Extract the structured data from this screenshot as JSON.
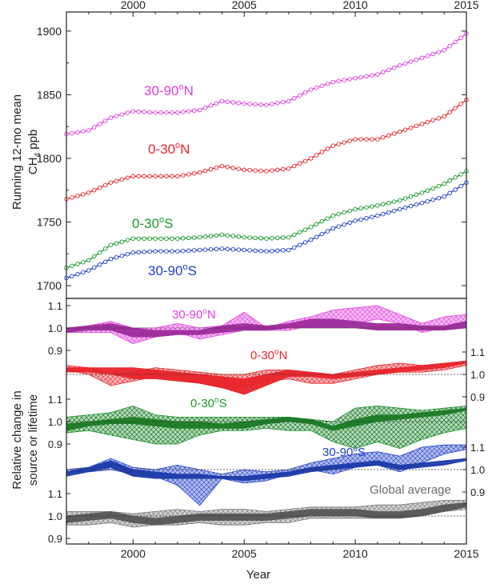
{
  "chart_data": [
    {
      "type": "line",
      "panel": "top",
      "ylabel_line1": "Running 12-mo mean",
      "ylabel_line2_main": "CH",
      "ylabel_line2_sub": "4",
      "ylabel_line2_rest": " ppb",
      "xlim": [
        1997,
        2015
      ],
      "ylim": [
        1690,
        1915
      ],
      "x_ticks_top": [
        "2000",
        "2005",
        "2010",
        "2015"
      ],
      "y_ticks": [
        "1700",
        "1750",
        "1800",
        "1850",
        "1900"
      ],
      "grid": false,
      "series": [
        {
          "label_main": "30-90",
          "label_sup": "o",
          "label_end": "N",
          "color": "#e23ee0",
          "x": [
            1997,
            1998,
            1999,
            2000,
            2001,
            2002,
            2003,
            2004,
            2005,
            2006,
            2007,
            2008,
            2009,
            2010,
            2011,
            2012,
            2013,
            2014,
            2015
          ],
          "y": [
            1819,
            1822,
            1832,
            1837,
            1836,
            1836,
            1838,
            1845,
            1843,
            1842,
            1845,
            1854,
            1860,
            1863,
            1866,
            1873,
            1879,
            1885,
            1898
          ]
        },
        {
          "label_main": "0-30",
          "label_sup": "o",
          "label_end": "N",
          "color": "#e8242a",
          "x": [
            1997,
            1998,
            1999,
            2000,
            2001,
            2002,
            2003,
            2004,
            2005,
            2006,
            2007,
            2008,
            2009,
            2010,
            2011,
            2012,
            2013,
            2014,
            2015
          ],
          "y": [
            1768,
            1773,
            1781,
            1786,
            1786,
            1786,
            1789,
            1794,
            1791,
            1790,
            1792,
            1800,
            1810,
            1815,
            1815,
            1821,
            1827,
            1833,
            1846
          ]
        },
        {
          "label_main": "0-30",
          "label_sup": "o",
          "label_end": "S",
          "color": "#1a9a2a",
          "x": [
            1997,
            1998,
            1999,
            2000,
            2001,
            2002,
            2003,
            2004,
            2005,
            2006,
            2007,
            2008,
            2009,
            2010,
            2011,
            2012,
            2013,
            2014,
            2015
          ],
          "y": [
            1714,
            1720,
            1732,
            1737,
            1737,
            1737,
            1738,
            1740,
            1738,
            1737,
            1738,
            1746,
            1755,
            1760,
            1763,
            1767,
            1773,
            1780,
            1790
          ]
        },
        {
          "label_main": "30-90",
          "label_sup": "o",
          "label_end": "S",
          "color": "#1f3fc8",
          "x": [
            1997,
            1998,
            1999,
            2000,
            2001,
            2002,
            2003,
            2004,
            2005,
            2006,
            2007,
            2008,
            2009,
            2010,
            2011,
            2012,
            2013,
            2014,
            2015
          ],
          "y": [
            1706,
            1712,
            1721,
            1726,
            1727,
            1727,
            1728,
            1729,
            1728,
            1727,
            1728,
            1736,
            1745,
            1751,
            1755,
            1760,
            1765,
            1770,
            1781
          ]
        }
      ]
    },
    {
      "type": "area",
      "panel": "bottom",
      "ylabel_line1": "Relative change in",
      "ylabel_line2": "source or lifetime",
      "xlabel": "Year",
      "xlim": [
        1997,
        2015
      ],
      "x_ticks": [
        "2000",
        "2005",
        "2010",
        "2015"
      ],
      "tick_labels": [
        "1.1",
        "1.0",
        "0.9"
      ],
      "reference_line": 1.0,
      "bands": [
        {
          "label_main": "30-90",
          "label_sup": "o",
          "label_end": "N",
          "label_color": "#e23ee0",
          "axis_side": "left",
          "color": "#e23ee0",
          "solid_color": "#9c2a9a",
          "x": [
            1997,
            1998,
            1999,
            2000,
            2001,
            2002,
            2003,
            2004,
            2005,
            2006,
            2007,
            2008,
            2009,
            2010,
            2011,
            2012,
            2013,
            2014,
            2015
          ],
          "solid_hi": [
            1.0,
            1.01,
            1.02,
            1.0,
            0.99,
            0.99,
            0.99,
            1.01,
            1.02,
            1.01,
            1.02,
            1.04,
            1.04,
            1.03,
            1.02,
            1.02,
            1.01,
            1.01,
            1.03
          ],
          "solid_lo": [
            0.98,
            0.99,
            0.99,
            0.96,
            0.96,
            0.97,
            0.97,
            0.98,
            0.99,
            0.99,
            1.0,
            1.0,
            1.0,
            1.0,
            0.99,
            0.99,
            0.99,
            0.99,
            1.0
          ],
          "hatch_hi": [
            1.0,
            1.01,
            1.03,
            1.0,
            1.0,
            1.02,
            1.0,
            1.01,
            1.07,
            1.0,
            1.03,
            1.05,
            1.08,
            1.09,
            1.1,
            1.06,
            1.02,
            1.05,
            1.06
          ],
          "hatch_lo": [
            0.98,
            0.98,
            0.98,
            0.93,
            0.96,
            0.98,
            0.95,
            0.97,
            0.99,
            0.99,
            0.99,
            1.01,
            1.01,
            1.02,
            1.04,
            1.02,
            0.98,
            1.0,
            1.02
          ]
        },
        {
          "label_main": "0-30",
          "label_sup": "o",
          "label_end": "N",
          "label_color": "#e8242a",
          "axis_side": "right",
          "color": "#e8242a",
          "solid_color": "#e8242a",
          "x": [
            1997,
            1998,
            1999,
            2000,
            2001,
            2002,
            2003,
            2004,
            2005,
            2006,
            2007,
            2008,
            2009,
            2010,
            2011,
            2012,
            2013,
            2014,
            2015
          ],
          "solid_hi": [
            1.03,
            1.03,
            1.03,
            1.03,
            1.02,
            1.01,
            1.0,
            0.99,
            0.98,
            1.0,
            1.02,
            1.01,
            1.0,
            1.01,
            1.02,
            1.03,
            1.04,
            1.05,
            1.06
          ],
          "solid_lo": [
            1.01,
            1.01,
            1.0,
            0.98,
            0.98,
            0.97,
            0.96,
            0.94,
            0.91,
            0.95,
            0.99,
            0.99,
            0.98,
            0.99,
            1.0,
            1.01,
            1.02,
            1.03,
            1.05
          ],
          "hatch_hi": [
            1.04,
            1.03,
            1.0,
            1.01,
            1.03,
            1.02,
            1.01,
            1.0,
            1.0,
            1.02,
            1.02,
            1.01,
            1.0,
            1.02,
            1.04,
            1.05,
            1.04,
            1.05,
            1.06
          ],
          "hatch_lo": [
            1.02,
            1.0,
            0.95,
            0.97,
            0.99,
            0.98,
            0.96,
            0.94,
            0.94,
            0.97,
            0.98,
            0.96,
            0.96,
            0.98,
            1.0,
            1.01,
            1.01,
            1.02,
            1.04
          ]
        },
        {
          "label_main": "0-30",
          "label_sup": "o",
          "label_end": "S",
          "label_color": "#1a9a2a",
          "axis_side": "left",
          "color": "#1a9a2a",
          "solid_color": "#1a7a24",
          "x": [
            1997,
            1998,
            1999,
            2000,
            2001,
            2002,
            2003,
            2004,
            2005,
            2006,
            2007,
            2008,
            2009,
            2010,
            2011,
            2012,
            2013,
            2014,
            2015
          ],
          "solid_hi": [
            0.99,
            1.0,
            1.01,
            1.02,
            1.01,
            1.0,
            1.0,
            0.99,
            1.0,
            1.01,
            1.02,
            1.01,
            0.98,
            1.01,
            1.03,
            1.03,
            1.04,
            1.05,
            1.06
          ],
          "solid_lo": [
            0.96,
            0.98,
            0.99,
            0.99,
            0.98,
            0.97,
            0.97,
            0.97,
            0.97,
            0.99,
            1.0,
            0.99,
            0.96,
            0.98,
            1.0,
            1.01,
            1.02,
            1.03,
            1.05
          ],
          "hatch_hi": [
            1.02,
            1.03,
            1.04,
            1.07,
            1.03,
            1.02,
            1.02,
            1.02,
            1.02,
            1.02,
            1.02,
            1.01,
            1.0,
            1.06,
            1.07,
            1.06,
            1.05,
            1.06,
            1.07
          ],
          "hatch_lo": [
            0.95,
            0.96,
            0.94,
            0.92,
            0.9,
            0.9,
            0.94,
            0.96,
            0.96,
            0.97,
            0.96,
            0.96,
            0.91,
            0.88,
            0.91,
            0.88,
            0.92,
            0.95,
            0.97
          ]
        },
        {
          "label_main": "30-90",
          "label_sup": "o",
          "label_end": "S",
          "label_color": "#1f3fc8",
          "axis_side": "right",
          "color": "#1f3fc8",
          "solid_color": "#1a3aa8",
          "x": [
            1997,
            1998,
            1999,
            2000,
            2001,
            2002,
            2003,
            2004,
            2005,
            2006,
            2007,
            2008,
            2009,
            2010,
            2011,
            2012,
            2013,
            2014,
            2015
          ],
          "solid_hi": [
            0.99,
            1.01,
            1.04,
            1.0,
            0.99,
            0.98,
            0.98,
            0.97,
            0.97,
            0.98,
            0.99,
            1.01,
            1.02,
            1.03,
            1.04,
            1.02,
            1.03,
            1.04,
            1.05
          ],
          "solid_lo": [
            0.97,
            0.99,
            1.01,
            0.97,
            0.96,
            0.96,
            0.96,
            0.96,
            0.95,
            0.96,
            0.97,
            0.99,
            1.0,
            1.01,
            1.02,
            1.0,
            1.01,
            1.02,
            1.04
          ],
          "hatch_hi": [
            1.0,
            1.01,
            1.05,
            1.01,
            1.0,
            1.02,
            1.0,
            0.98,
            1.0,
            0.99,
            1.0,
            1.03,
            1.05,
            1.07,
            1.08,
            1.06,
            1.1,
            1.11,
            1.11
          ],
          "hatch_lo": [
            0.99,
            0.99,
            1.0,
            0.98,
            0.97,
            0.93,
            0.84,
            0.96,
            0.94,
            0.95,
            0.98,
            1.0,
            0.98,
            1.01,
            1.02,
            0.99,
            1.03,
            1.07,
            1.09
          ]
        },
        {
          "label": "Global average",
          "label_color": "#6a6a6a",
          "axis_side": "left",
          "color": "#777777",
          "solid_color": "#555555",
          "x": [
            1997,
            1998,
            1999,
            2000,
            2001,
            2002,
            2003,
            2004,
            2005,
            2006,
            2007,
            2008,
            2009,
            2010,
            2011,
            2012,
            2013,
            2014,
            2015
          ],
          "solid_hi": [
            1.0,
            1.01,
            1.02,
            1.0,
            0.99,
            1.0,
            1.01,
            1.01,
            1.01,
            1.01,
            1.02,
            1.03,
            1.03,
            1.03,
            1.02,
            1.02,
            1.03,
            1.05,
            1.06
          ],
          "solid_lo": [
            0.97,
            0.98,
            0.99,
            0.97,
            0.96,
            0.97,
            0.98,
            0.98,
            0.98,
            0.98,
            0.99,
            1.0,
            1.0,
            1.0,
            0.99,
            0.99,
            1.0,
            1.02,
            1.04
          ],
          "hatch_hi": [
            1.02,
            1.02,
            1.02,
            1.01,
            1.02,
            1.03,
            1.02,
            1.03,
            1.03,
            1.02,
            1.03,
            1.04,
            1.04,
            1.04,
            1.05,
            1.05,
            1.06,
            1.07,
            1.07
          ],
          "hatch_lo": [
            0.96,
            0.96,
            0.97,
            0.95,
            0.96,
            0.96,
            0.97,
            0.96,
            0.96,
            0.97,
            0.97,
            0.99,
            0.99,
            0.99,
            0.99,
            0.99,
            1.0,
            1.02,
            1.03
          ]
        }
      ]
    }
  ]
}
